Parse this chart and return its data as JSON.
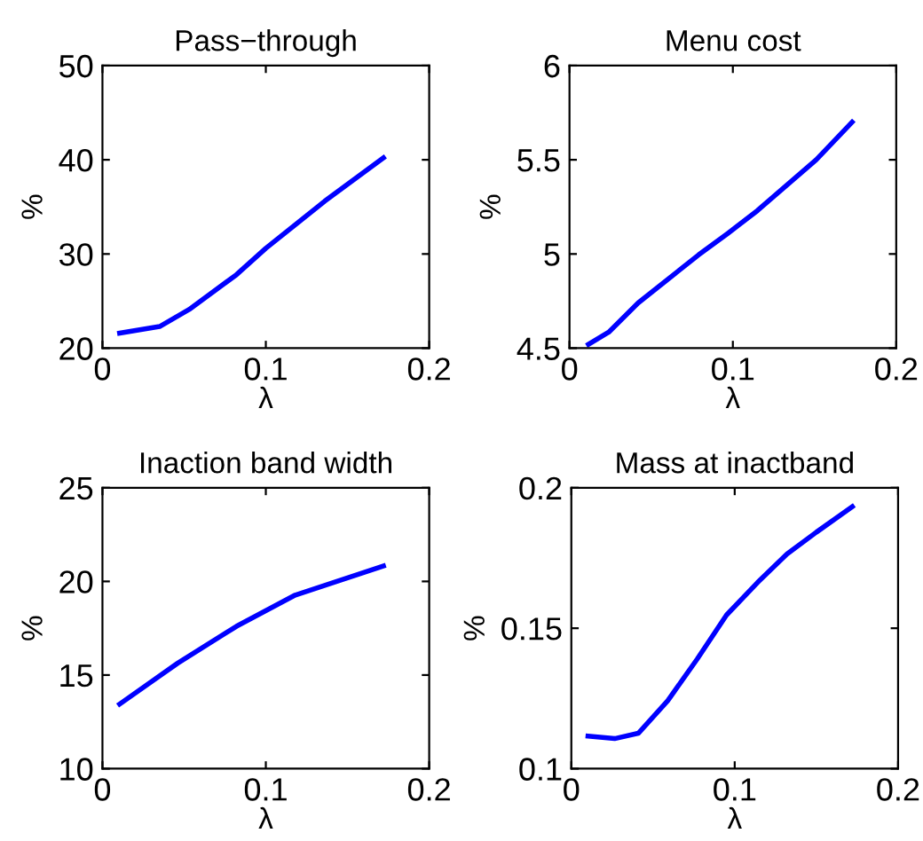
{
  "chart_data": [
    {
      "type": "line",
      "title": "Pass−through",
      "xlabel": "λ",
      "ylabel": "%",
      "x": [
        0.0105,
        0.035,
        0.053,
        0.082,
        0.1,
        0.136,
        0.172
      ],
      "series": [
        {
          "color": "#0000ff",
          "values": [
            21.6,
            22.3,
            24.1,
            27.8,
            30.6,
            35.6,
            40.2
          ]
        }
      ],
      "xlim": [
        0,
        0.2
      ],
      "xticks": [
        0,
        0.1,
        0.2
      ],
      "ylim": [
        20,
        50
      ],
      "yticks": [
        20,
        30,
        40,
        50
      ],
      "grid": false,
      "legend": false
    },
    {
      "type": "line",
      "title": "Menu cost",
      "xlabel": "λ",
      "ylabel": "%",
      "x": [
        0.0116,
        0.024,
        0.042,
        0.079,
        0.097,
        0.115,
        0.151,
        0.173
      ],
      "series": [
        {
          "color": "#0000ff",
          "values": [
            4.52,
            4.585,
            4.74,
            4.995,
            5.11,
            5.23,
            5.5,
            5.7
          ]
        }
      ],
      "xlim": [
        0,
        0.2
      ],
      "xticks": [
        0,
        0.1,
        0.2
      ],
      "ylim": [
        4.5,
        6
      ],
      "yticks": [
        4.5,
        5,
        5.5,
        6
      ],
      "grid": false,
      "legend": false
    },
    {
      "type": "line",
      "title": "Inaction band width",
      "xlabel": "λ",
      "ylabel": "%",
      "x": [
        0.0105,
        0.046,
        0.082,
        0.118,
        0.172
      ],
      "series": [
        {
          "color": "#0000ff",
          "values": [
            13.45,
            15.63,
            17.6,
            19.27,
            20.82
          ]
        }
      ],
      "xlim": [
        0,
        0.2
      ],
      "xticks": [
        0,
        0.1,
        0.2
      ],
      "ylim": [
        10,
        25
      ],
      "yticks": [
        10,
        15,
        20,
        25
      ],
      "grid": false,
      "legend": false
    },
    {
      "type": "line",
      "title": "Mass at inactband",
      "xlabel": "λ",
      "ylabel": "%",
      "x": [
        0.0102,
        0.0265,
        0.041,
        0.059,
        0.077,
        0.095,
        0.114,
        0.132,
        0.15,
        0.172
      ],
      "series": [
        {
          "color": "#0000ff",
          "values": [
            0.1116,
            0.1107,
            0.1126,
            0.1242,
            0.139,
            0.1547,
            0.1663,
            0.1764,
            0.1842,
            0.1933
          ]
        }
      ],
      "xlim": [
        0,
        0.2
      ],
      "xticks": [
        0,
        0.1,
        0.2
      ],
      "ylim": [
        0.1,
        0.2
      ],
      "yticks": [
        0.1,
        0.15,
        0.2
      ],
      "grid": false,
      "legend": false
    }
  ]
}
